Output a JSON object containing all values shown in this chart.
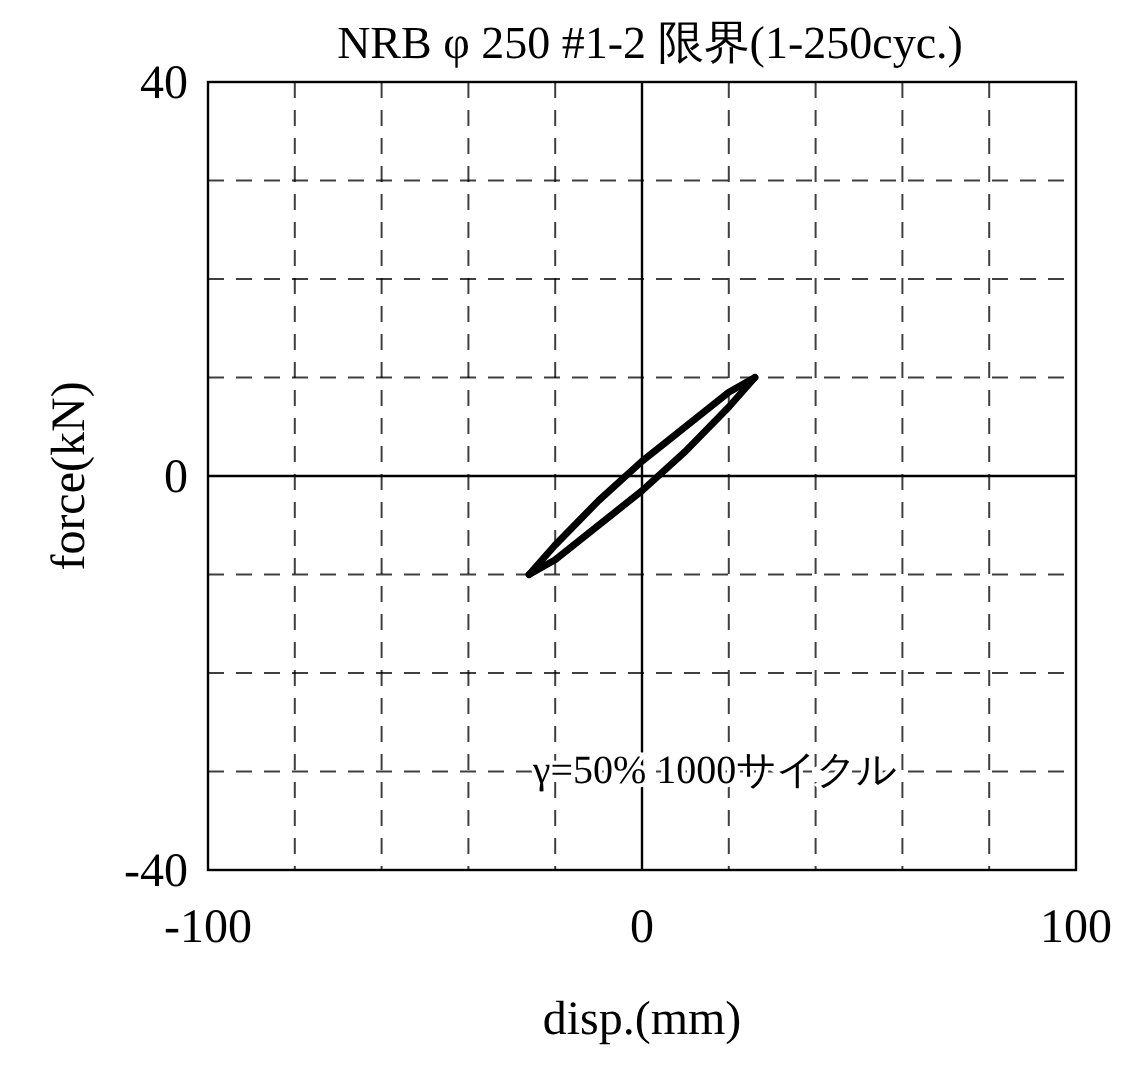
{
  "chart_data": {
    "type": "line",
    "title": "NRB φ 250  #1-2  限界(1-250cyc.)",
    "xlabel": "disp.(mm)",
    "ylabel": "force(kN)",
    "xlim": [
      -100,
      100
    ],
    "ylim": [
      -40,
      40
    ],
    "xticks": [
      -100,
      {
        "value": -80,
        "label": null
      },
      {
        "value": -60,
        "label": null
      },
      {
        "value": -40,
        "label": null
      },
      {
        "value": -20,
        "label": null
      },
      0,
      {
        "value": 20,
        "label": null
      },
      {
        "value": 40,
        "label": null
      },
      {
        "value": 60,
        "label": null
      },
      {
        "value": 80,
        "label": null
      },
      100
    ],
    "yticks": [
      -40,
      {
        "value": -30,
        "label": null
      },
      {
        "value": -20,
        "label": null
      },
      {
        "value": -10,
        "label": null
      },
      0,
      {
        "value": 10,
        "label": null
      },
      {
        "value": 20,
        "label": null
      },
      {
        "value": 30,
        "label": null
      },
      40
    ],
    "grid": true,
    "line_style": "solid",
    "marker": "none",
    "annotations": [
      "γ=50% 1000サイクル"
    ],
    "series": [
      {
        "color": "#000000",
        "x": [
          -26,
          -20,
          -10,
          0,
          10,
          20,
          26
        ],
        "values": [
          -10,
          -7,
          -2.5,
          1.5,
          5,
          8.5,
          10
        ]
      },
      {
        "color": "#000000",
        "x": [
          -26,
          -20,
          -10,
          0,
          10,
          20,
          26
        ],
        "values": [
          -10,
          -8.5,
          -5,
          -1.5,
          2.5,
          7,
          10
        ]
      }
    ]
  }
}
